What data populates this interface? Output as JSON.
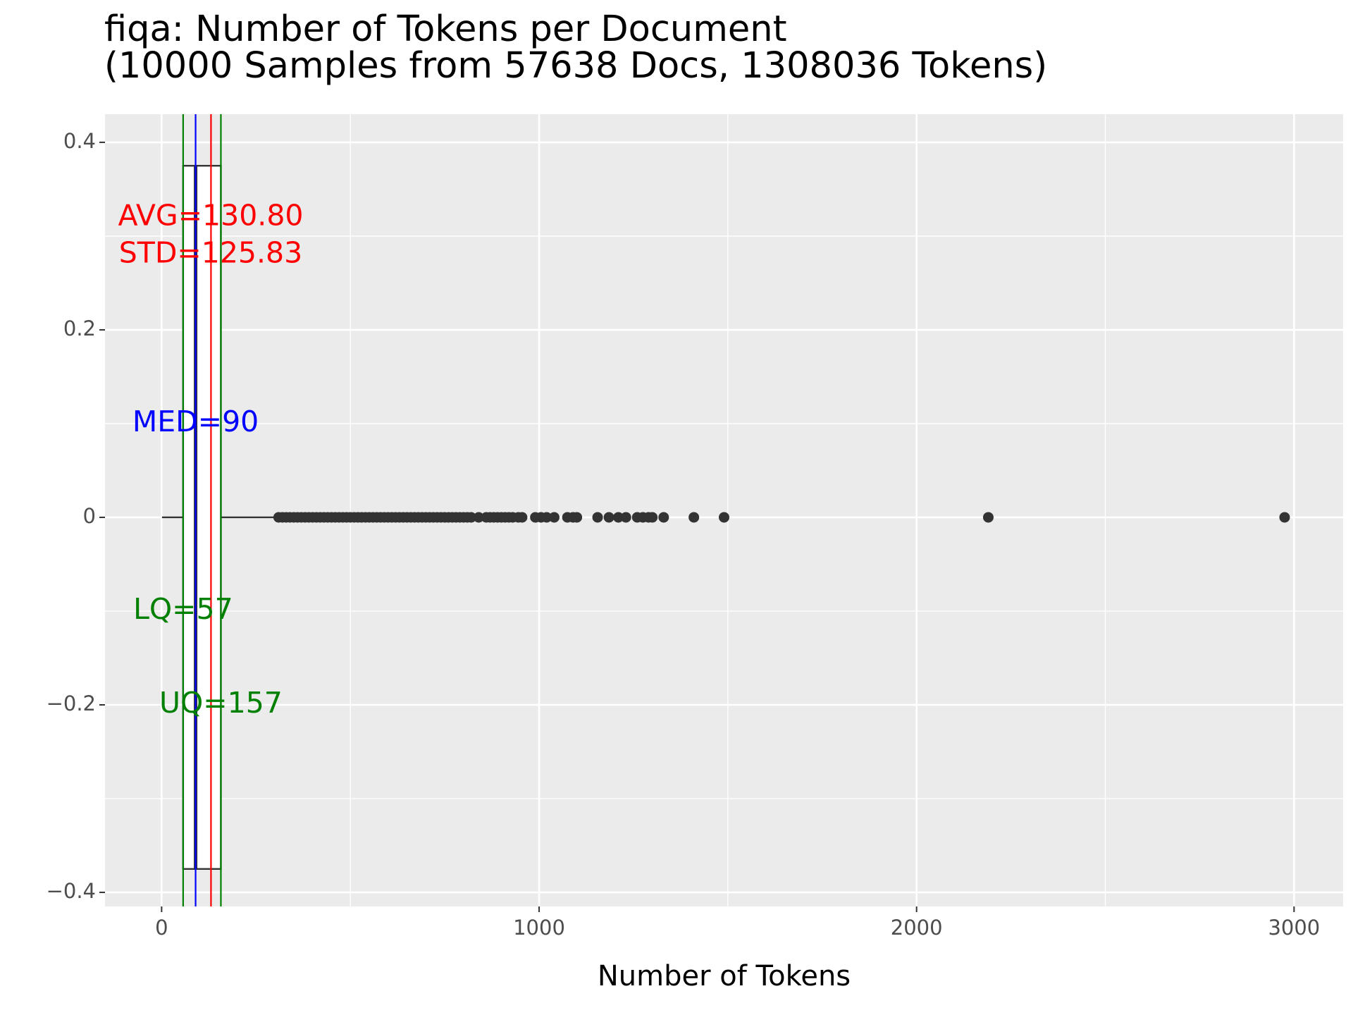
{
  "chart_data": {
    "type": "boxplot",
    "title": "fiqa: Number of Tokens per Document",
    "subtitle": "(10000 Samples from 57638 Docs, 1308036 Tokens)",
    "xlabel": "Number of Tokens",
    "ylabel": "",
    "xlim": [
      -150,
      3130
    ],
    "ylim": [
      -0.415,
      0.43
    ],
    "x_ticks": [
      0,
      1000,
      2000,
      3000
    ],
    "x_tick_labels": [
      "0",
      "1000",
      "2000",
      "3000"
    ],
    "y_ticks": [
      0.4,
      0.2,
      0,
      -0.2,
      -0.4
    ],
    "y_tick_labels": [
      "0.4",
      "0.2",
      "0",
      "−0.2",
      "−0.4"
    ],
    "grid": true,
    "box": {
      "lower_quartile": 57,
      "median": 90,
      "upper_quartile": 157,
      "whisker_low": 1,
      "whisker_high": 307,
      "y_center": 0,
      "half_width": 0.375
    },
    "reference_lines": [
      {
        "key": "lq",
        "x": 57,
        "color": "#008000"
      },
      {
        "key": "median",
        "x": 90,
        "color": "#0000ff"
      },
      {
        "key": "mean",
        "x": 130.8,
        "color": "#ff0000"
      },
      {
        "key": "uq",
        "x": 157,
        "color": "#008000"
      }
    ],
    "annotations": [
      {
        "text": "AVG=130.80",
        "x": 130,
        "y": 0.32,
        "color": "#ff0000"
      },
      {
        "text": "STD=125.83",
        "x": 130,
        "y": 0.28,
        "color": "#ff0000"
      },
      {
        "text": "MED=90",
        "x": 90,
        "y": 0.1,
        "color": "#0000ff"
      },
      {
        "text": "LQ=57",
        "x": 57,
        "y": -0.1,
        "color": "#008000"
      },
      {
        "text": "UQ=157",
        "x": 157,
        "y": -0.2,
        "color": "#008000"
      }
    ],
    "outliers_x": [
      310,
      320,
      330,
      340,
      350,
      360,
      370,
      380,
      390,
      400,
      410,
      420,
      430,
      440,
      450,
      460,
      470,
      480,
      490,
      500,
      510,
      520,
      530,
      540,
      550,
      560,
      570,
      580,
      590,
      600,
      610,
      620,
      630,
      640,
      650,
      660,
      670,
      680,
      690,
      700,
      710,
      720,
      730,
      740,
      750,
      760,
      770,
      780,
      790,
      800,
      810,
      820,
      840,
      860,
      870,
      880,
      890,
      900,
      910,
      920,
      930,
      945,
      955,
      990,
      1005,
      1020,
      1040,
      1075,
      1090,
      1100,
      1155,
      1185,
      1210,
      1230,
      1260,
      1275,
      1290,
      1300,
      1330,
      1410,
      1490,
      2190,
      2975
    ],
    "colors": {
      "panel_bg": "#ebebeb",
      "grid": "#ffffff",
      "box_outline": "#333333",
      "outlier": "#333333",
      "tick_text": "#4d4d4d"
    }
  }
}
